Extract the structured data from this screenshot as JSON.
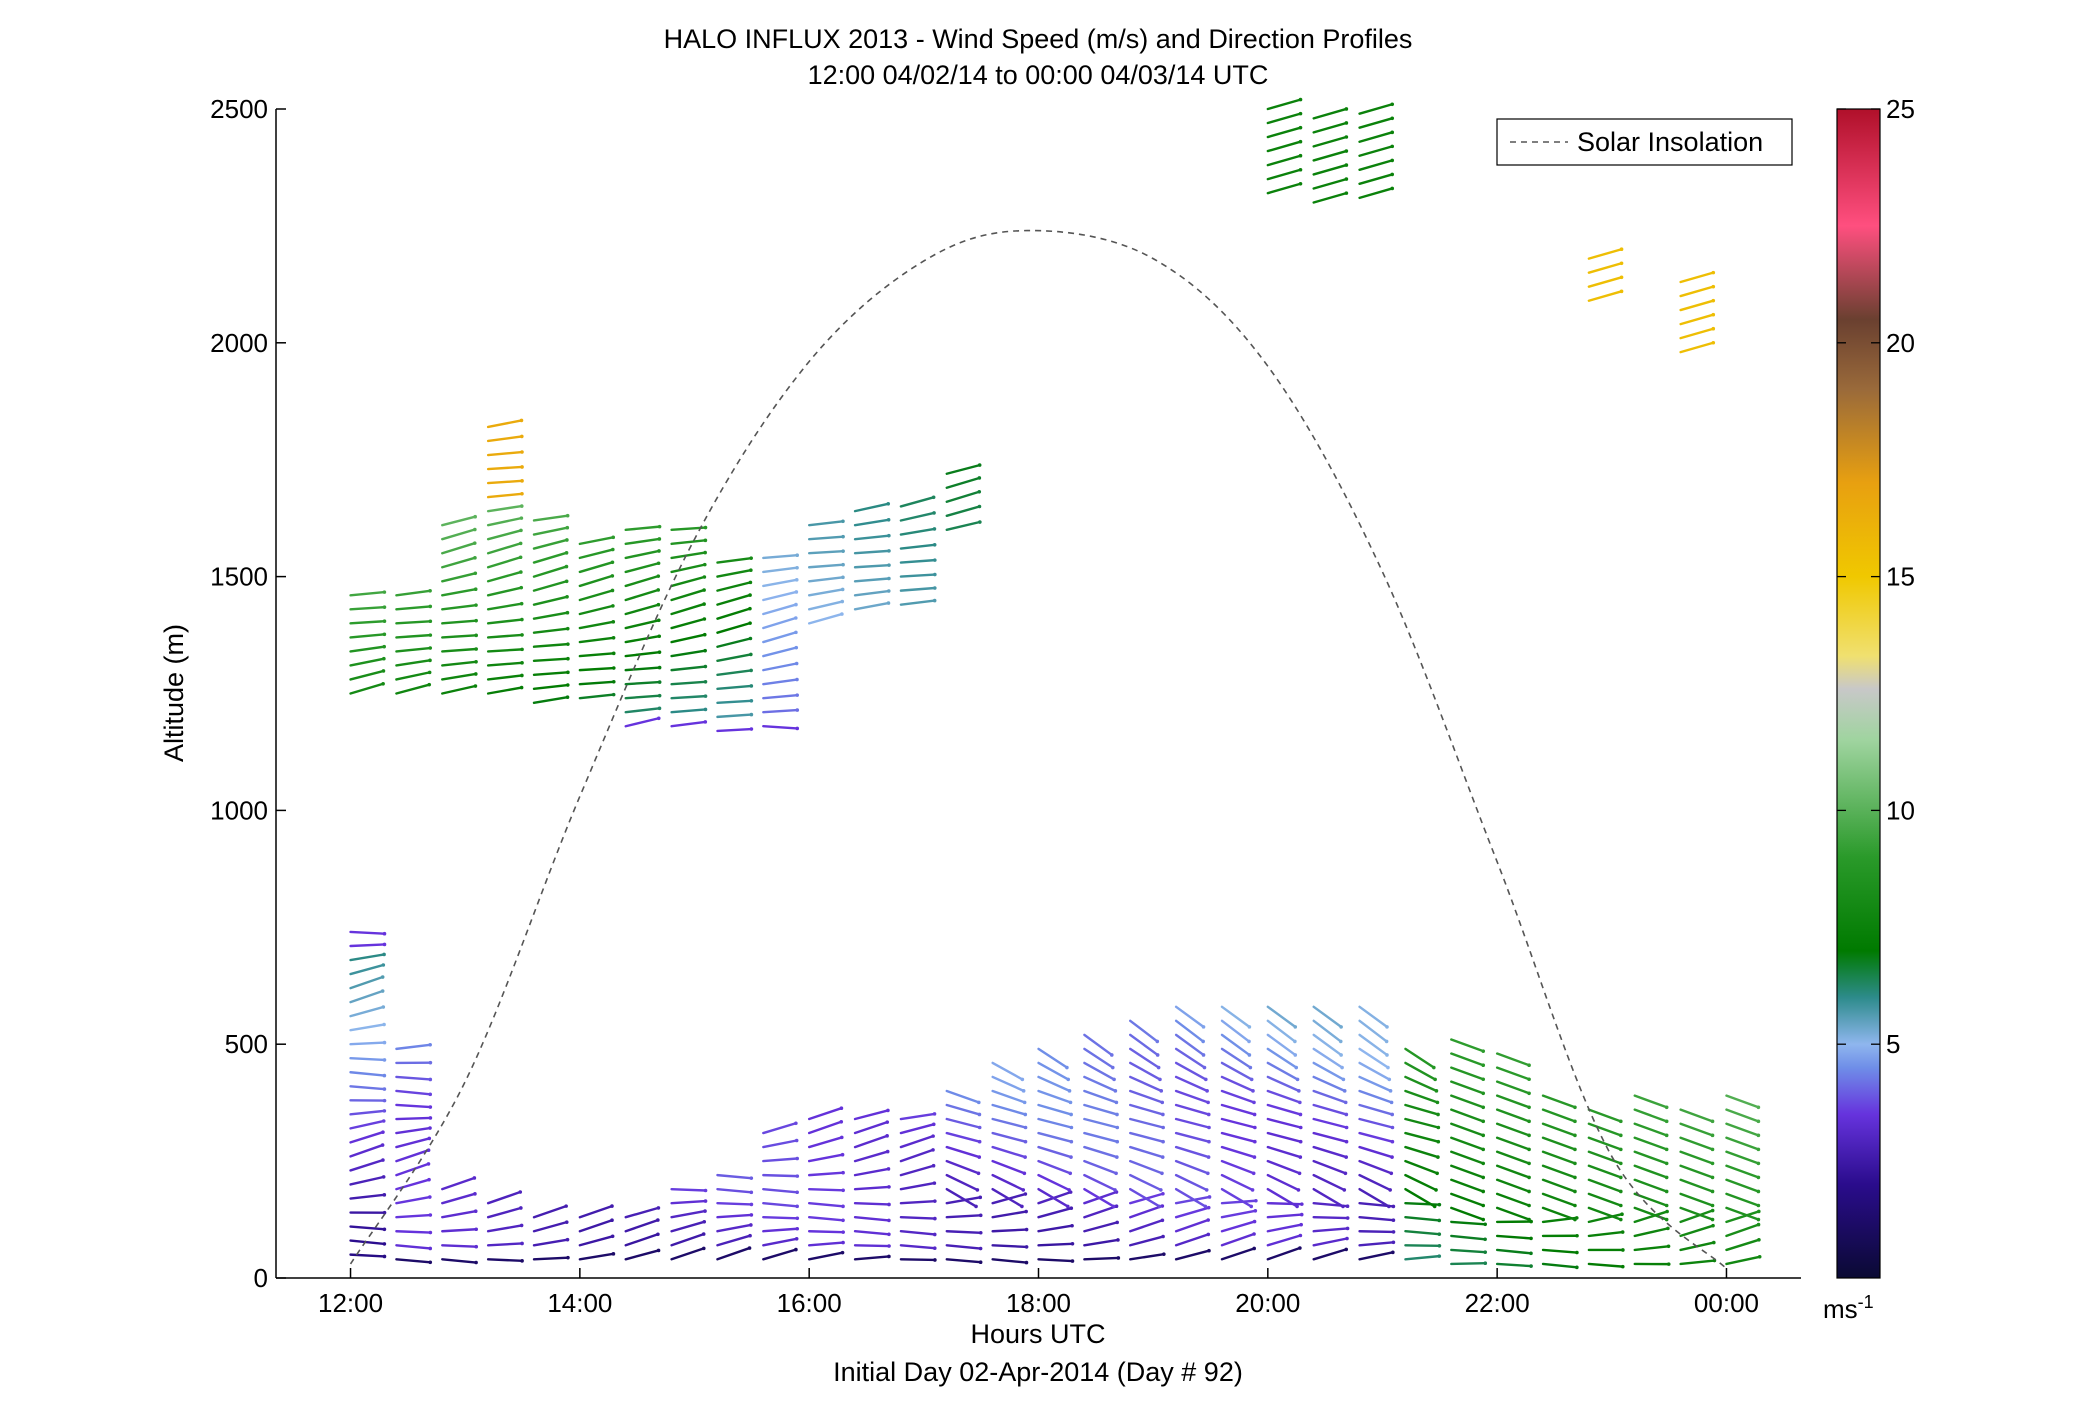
{
  "chart_data": {
    "type": "scatter",
    "plot_style": "wind barbs",
    "title": "HALO INFLUX 2013 - Wind Speed (m/s) and Direction Profiles",
    "subtitle": "12:00 04/02/14 to 00:00 04/03/14  UTC",
    "xlabel": "Hours UTC",
    "ylabel": "Altitude (m)",
    "footer": "Initial Day 02-Apr-2014 (Day # 92)",
    "x_unit": "hours since 12:00 UTC",
    "xlim": [
      -0.65,
      12.65
    ],
    "ylim": [
      0,
      2500
    ],
    "x_ticks": [
      0,
      2,
      4,
      6,
      8,
      10,
      12
    ],
    "x_tick_labels": [
      "12:00",
      "14:00",
      "16:00",
      "18:00",
      "20:00",
      "22:00",
      "00:00"
    ],
    "y_ticks": [
      0,
      500,
      1000,
      1500,
      2000,
      2500
    ],
    "y_tick_labels": [
      "0",
      "500",
      "1000",
      "1500",
      "2000",
      "2500"
    ],
    "grid": false,
    "legend": {
      "label": "Solar Insolation",
      "position": "top-right"
    },
    "solar_insolation_curve": {
      "style": "dashed",
      "color": "#555555",
      "x": [
        0,
        1,
        2,
        3,
        4,
        5,
        5.9,
        7,
        8,
        9,
        10,
        11,
        12
      ],
      "y": [
        30,
        420,
        1030,
        1580,
        1960,
        2175,
        2240,
        2180,
        1950,
        1510,
        890,
        260,
        20
      ]
    },
    "colorbar": {
      "min": 0,
      "max": 25,
      "ticks": [
        5,
        10,
        15,
        20,
        25
      ],
      "tick_labels": [
        "5",
        "10",
        "15",
        "20",
        "25"
      ],
      "unit_label": "ms",
      "unit_exponent": "-1",
      "colors": [
        "#0a0a33",
        "#2a0c8c",
        "#6633dd",
        "#6f8ee8",
        "#8fb6ee",
        "#2d8b8b",
        "#007a00",
        "#2a9a2a",
        "#9fd49f",
        "#c8c8c8",
        "#f0e070",
        "#f0c800",
        "#e8a010",
        "#9a6a3a",
        "#6a4030",
        "#ff4f7f",
        "#b0102a"
      ],
      "color_stops": [
        0,
        2,
        3.5,
        4.5,
        5,
        6,
        7,
        9,
        11.5,
        12.6,
        13.3,
        15,
        17,
        19,
        20.5,
        22.5,
        25
      ]
    },
    "barb_columns": [
      {
        "x": 0.0,
        "y0": 50,
        "y1": 760,
        "step": 30
      },
      {
        "x": 0.0,
        "y0": 1250,
        "y1": 1480,
        "step": 30
      },
      {
        "x": 0.4,
        "y0": 40,
        "y1": 500,
        "step": 30
      },
      {
        "x": 0.4,
        "y0": 1250,
        "y1": 1470,
        "step": 30
      },
      {
        "x": 0.8,
        "y0": 40,
        "y1": 200,
        "step": 30
      },
      {
        "x": 0.8,
        "y0": 1250,
        "y1": 1610,
        "step": 30
      },
      {
        "x": 1.2,
        "y0": 40,
        "y1": 160,
        "step": 30
      },
      {
        "x": 1.2,
        "y0": 1250,
        "y1": 1830,
        "step": 30
      },
      {
        "x": 1.6,
        "y0": 40,
        "y1": 140,
        "step": 30
      },
      {
        "x": 1.6,
        "y0": 1230,
        "y1": 1640,
        "step": 30
      },
      {
        "x": 2.0,
        "y0": 40,
        "y1": 130,
        "step": 30
      },
      {
        "x": 2.0,
        "y0": 1240,
        "y1": 1570,
        "step": 30
      },
      {
        "x": 2.4,
        "y0": 40,
        "y1": 140,
        "step": 30
      },
      {
        "x": 2.4,
        "y0": 1180,
        "y1": 1610,
        "step": 30
      },
      {
        "x": 2.8,
        "y0": 40,
        "y1": 210,
        "step": 30
      },
      {
        "x": 2.8,
        "y0": 1180,
        "y1": 1620,
        "step": 30
      },
      {
        "x": 3.2,
        "y0": 40,
        "y1": 220,
        "step": 30
      },
      {
        "x": 3.2,
        "y0": 1170,
        "y1": 1540,
        "step": 30
      },
      {
        "x": 3.6,
        "y0": 40,
        "y1": 330,
        "step": 30
      },
      {
        "x": 3.6,
        "y0": 1180,
        "y1": 1540,
        "step": 30
      },
      {
        "x": 4.0,
        "y0": 40,
        "y1": 340,
        "step": 30
      },
      {
        "x": 4.0,
        "y0": 1400,
        "y1": 1620,
        "step": 30
      },
      {
        "x": 4.4,
        "y0": 40,
        "y1": 340,
        "step": 30
      },
      {
        "x": 4.4,
        "y0": 1430,
        "y1": 1640,
        "step": 30
      },
      {
        "x": 4.8,
        "y0": 40,
        "y1": 360,
        "step": 30
      },
      {
        "x": 4.8,
        "y0": 1440,
        "y1": 1660,
        "step": 30
      },
      {
        "x": 5.2,
        "y0": 40,
        "y1": 420,
        "step": 30
      },
      {
        "x": 5.2,
        "y0": 1600,
        "y1": 1720,
        "step": 30
      },
      {
        "x": 5.6,
        "y0": 40,
        "y1": 480,
        "step": 30
      },
      {
        "x": 6.0,
        "y0": 40,
        "y1": 510,
        "step": 30
      },
      {
        "x": 6.4,
        "y0": 40,
        "y1": 520,
        "step": 30
      },
      {
        "x": 6.8,
        "y0": 40,
        "y1": 560,
        "step": 30
      },
      {
        "x": 7.2,
        "y0": 40,
        "y1": 590,
        "step": 30
      },
      {
        "x": 7.6,
        "y0": 40,
        "y1": 590,
        "step": 30
      },
      {
        "x": 8.0,
        "y0": 40,
        "y1": 590,
        "step": 30
      },
      {
        "x": 8.0,
        "y0": 2320,
        "y1": 2500,
        "step": 30
      },
      {
        "x": 8.4,
        "y0": 40,
        "y1": 590,
        "step": 30
      },
      {
        "x": 8.4,
        "y0": 2300,
        "y1": 2500,
        "step": 30
      },
      {
        "x": 8.8,
        "y0": 40,
        "y1": 590,
        "step": 30
      },
      {
        "x": 8.8,
        "y0": 2310,
        "y1": 2500,
        "step": 30
      },
      {
        "x": 9.2,
        "y0": 40,
        "y1": 500,
        "step": 30
      },
      {
        "x": 9.6,
        "y0": 30,
        "y1": 530,
        "step": 30
      },
      {
        "x": 10.0,
        "y0": 30,
        "y1": 480,
        "step": 30
      },
      {
        "x": 10.4,
        "y0": 30,
        "y1": 400,
        "step": 30
      },
      {
        "x": 10.8,
        "y0": 30,
        "y1": 380,
        "step": 30
      },
      {
        "x": 10.8,
        "y0": 2090,
        "y1": 2180,
        "step": 30
      },
      {
        "x": 11.2,
        "y0": 30,
        "y1": 390,
        "step": 30
      },
      {
        "x": 11.6,
        "y0": 30,
        "y1": 370,
        "step": 30
      },
      {
        "x": 11.6,
        "y0": 1980,
        "y1": 2130,
        "step": 30
      },
      {
        "x": 12.0,
        "y0": 30,
        "y1": 390,
        "step": 30
      }
    ]
  }
}
